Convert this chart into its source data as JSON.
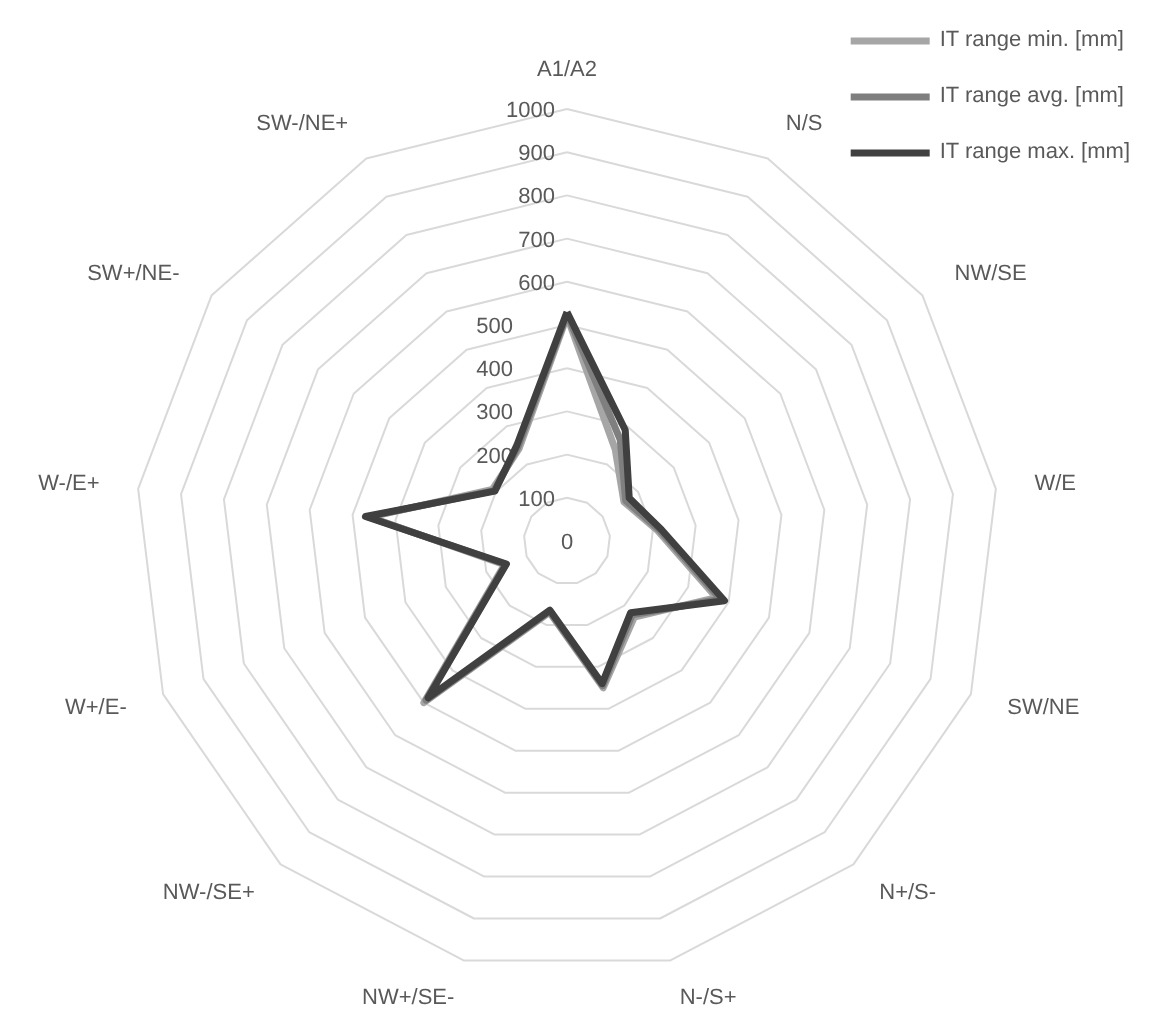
{
  "chart_data": {
    "type": "radar",
    "categories": [
      "A1/A2",
      "N/S",
      "NW/SE",
      "W/E",
      "SW/NE",
      "N+/S-",
      "N-/S+",
      "NW+/SE-",
      "NW-/SE+",
      "W+/E-",
      "W-/E+",
      "SW+/NE-",
      "SW-/NE+"
    ],
    "series": [
      {
        "name": "IT range min. [mm]",
        "color": "#a6a6a6",
        "values": [
          520,
          240,
          160,
          210,
          370,
          235,
          350,
          170,
          500,
          155,
          460,
          210,
          240
        ]
      },
      {
        "name": "IT range avg. [mm]",
        "color": "#7f7f7f",
        "values": [
          525,
          265,
          165,
          215,
          380,
          228,
          345,
          168,
          492,
          152,
          465,
          205,
          245
        ]
      },
      {
        "name": "IT range max. [mm]",
        "color": "#404040",
        "values": [
          530,
          290,
          175,
          220,
          390,
          222,
          340,
          165,
          485,
          150,
          470,
          203,
          250
        ]
      }
    ],
    "ylim": [
      0,
      1000
    ],
    "yticks": [
      0,
      100,
      200,
      300,
      400,
      500,
      600,
      700,
      800,
      900,
      1000
    ],
    "grid": true,
    "legend": "top right",
    "marker": "none",
    "line_style": "solid"
  }
}
